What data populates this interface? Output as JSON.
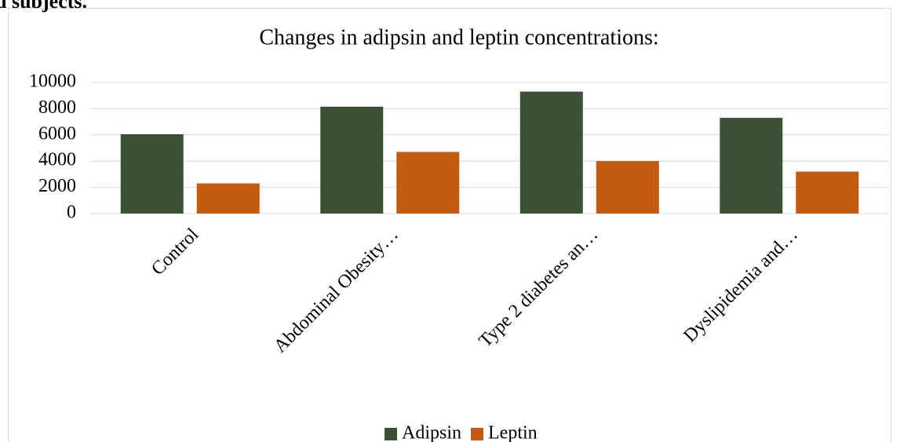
{
  "page_text": "d subjects.",
  "chart_data": {
    "type": "bar",
    "title": "Changes in adipsin and leptin concentrations:",
    "categories": [
      "Control",
      "Abdominal Obesity…",
      "Type 2 diabetes an…",
      "Dyslipidemia and…"
    ],
    "series": [
      {
        "name": "Adipsin",
        "color": "#3b5135",
        "values": [
          6050,
          8150,
          9300,
          7300
        ]
      },
      {
        "name": "Leptin",
        "color": "#c55a11",
        "values": [
          2300,
          4700,
          4000,
          3200
        ]
      }
    ],
    "ylim": [
      0,
      10000
    ],
    "yticks": [
      0,
      2000,
      4000,
      6000,
      8000,
      10000
    ],
    "grid": true,
    "legend": "bottom"
  }
}
